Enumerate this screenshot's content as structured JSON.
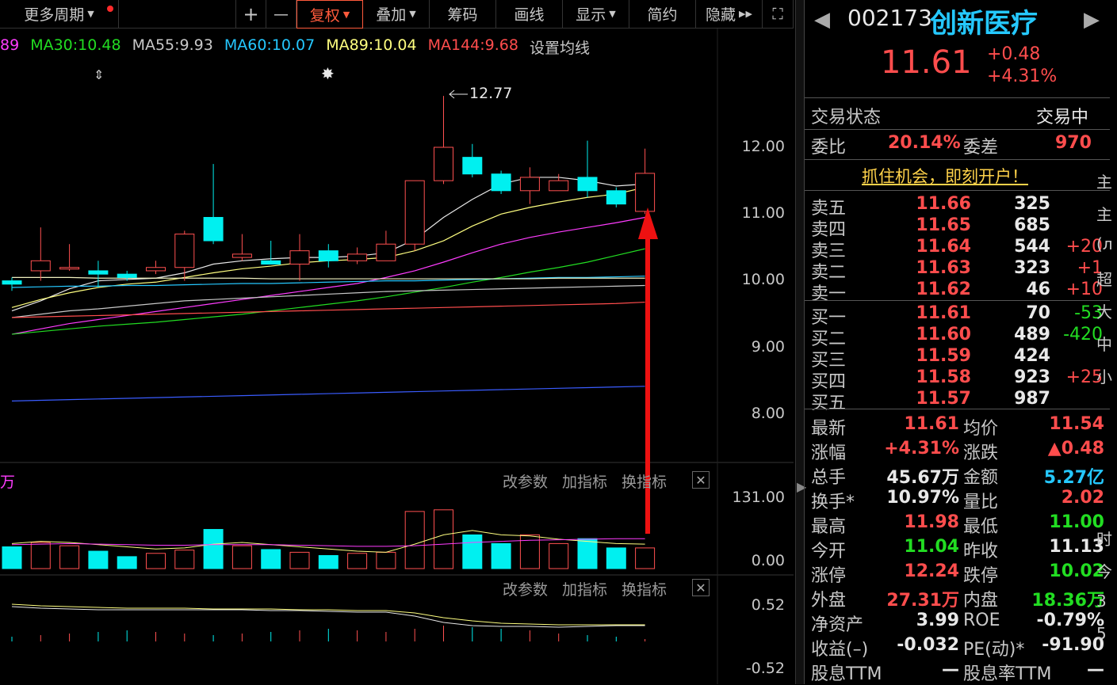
{
  "toolbar": {
    "more_periods": "更多周期",
    "items": [
      "复权",
      "叠加",
      "筹码",
      "画线",
      "显示",
      "简约",
      "隐藏"
    ],
    "plus": "+",
    "minus": "—",
    "fullscreen": "⛶"
  },
  "ma_legend": [
    {
      "label": "89",
      "color": "#ff3cff"
    },
    {
      "label": "MA30:10.48",
      "color": "#22dd22"
    },
    {
      "label": "MA55:9.93",
      "color": "#c8c8c8"
    },
    {
      "label": "MA60:10.07",
      "color": "#25c8ff"
    },
    {
      "label": "MA89:10.04",
      "color": "#ffff80"
    },
    {
      "label": "MA144:9.68",
      "color": "#ff4d4d"
    },
    {
      "label": "设置均线",
      "color": "#c8c8c8"
    }
  ],
  "price_axis": [
    "12.00",
    "11.00",
    "10.00",
    "9.00",
    "8.00"
  ],
  "high_marker": "12.77",
  "volume_axis": [
    "131.00",
    "0.00"
  ],
  "vol_label": "万",
  "indicator_axis": [
    "0.52",
    "-0.52"
  ],
  "panel_buttons": [
    "改参数",
    "加指标",
    "换指标"
  ],
  "chart_data": {
    "type": "candlestick",
    "ylim": [
      7.3,
      13.0
    ],
    "candles": [
      {
        "o": 10.0,
        "c": 9.95,
        "h": 10.05,
        "l": 9.85
      },
      {
        "o": 10.15,
        "c": 10.3,
        "h": 10.8,
        "l": 10.0
      },
      {
        "o": 10.2,
        "c": 10.2,
        "h": 10.55,
        "l": 10.15
      },
      {
        "o": 10.15,
        "c": 10.1,
        "h": 10.3,
        "l": 9.9
      },
      {
        "o": 10.1,
        "c": 10.05,
        "h": 10.15,
        "l": 10.0
      },
      {
        "o": 10.15,
        "c": 10.2,
        "h": 10.3,
        "l": 10.1
      },
      {
        "o": 10.2,
        "c": 10.7,
        "h": 10.75,
        "l": 10.0
      },
      {
        "o": 10.95,
        "c": 10.6,
        "h": 11.75,
        "l": 10.55
      },
      {
        "o": 10.35,
        "c": 10.4,
        "h": 10.7,
        "l": 10.3
      },
      {
        "o": 10.3,
        "c": 10.25,
        "h": 10.6,
        "l": 10.25
      },
      {
        "o": 10.25,
        "c": 10.45,
        "h": 10.7,
        "l": 10.0
      },
      {
        "o": 10.45,
        "c": 10.3,
        "h": 10.55,
        "l": 10.2
      },
      {
        "o": 10.3,
        "c": 10.4,
        "h": 10.5,
        "l": 10.25
      },
      {
        "o": 10.3,
        "c": 10.55,
        "h": 10.75,
        "l": 10.3
      },
      {
        "o": 10.55,
        "c": 11.5,
        "h": 11.5,
        "l": 10.45
      },
      {
        "o": 11.5,
        "c": 12.0,
        "h": 12.77,
        "l": 11.45
      },
      {
        "o": 11.85,
        "c": 11.6,
        "h": 12.05,
        "l": 11.55
      },
      {
        "o": 11.6,
        "c": 11.35,
        "h": 11.65,
        "l": 11.3
      },
      {
        "o": 11.35,
        "c": 11.55,
        "h": 11.7,
        "l": 11.15
      },
      {
        "o": 11.35,
        "c": 11.5,
        "h": 11.6,
        "l": 11.35
      },
      {
        "o": 11.55,
        "c": 11.35,
        "h": 12.1,
        "l": 11.25
      },
      {
        "o": 11.35,
        "c": 11.15,
        "h": 11.4,
        "l": 11.1
      },
      {
        "o": 11.04,
        "c": 11.61,
        "h": 11.98,
        "l": 11.0
      }
    ],
    "volumes": [
      40,
      48,
      42,
      32,
      22,
      28,
      34,
      72,
      42,
      35,
      30,
      24,
      28,
      30,
      105,
      108,
      62,
      46,
      62,
      46,
      55,
      38,
      38
    ],
    "vol_max": 131,
    "ma_lines": [
      {
        "color": "#e8e8e8",
        "values": [
          9.55,
          9.7,
          9.88,
          10.0,
          10.02,
          10.04,
          10.12,
          10.25,
          10.3,
          10.33,
          10.35,
          10.35,
          10.37,
          10.42,
          10.62,
          10.95,
          11.22,
          11.45,
          11.55,
          11.55,
          11.5,
          11.42,
          11.45
        ]
      },
      {
        "color": "#ffff80",
        "values": [
          9.6,
          9.72,
          9.82,
          9.9,
          9.95,
          9.98,
          10.05,
          10.12,
          10.18,
          10.22,
          10.27,
          10.3,
          10.32,
          10.35,
          10.45,
          10.6,
          10.82,
          11.0,
          11.1,
          11.18,
          11.25,
          11.3,
          11.4
        ]
      },
      {
        "color": "#ff3cff",
        "values": [
          9.2,
          9.28,
          9.36,
          9.42,
          9.48,
          9.54,
          9.6,
          9.66,
          9.72,
          9.78,
          9.84,
          9.9,
          9.96,
          10.05,
          10.15,
          10.28,
          10.42,
          10.55,
          10.65,
          10.73,
          10.8,
          10.87,
          10.95
        ]
      },
      {
        "color": "#22dd22",
        "values": [
          9.2,
          9.24,
          9.28,
          9.32,
          9.35,
          9.38,
          9.42,
          9.46,
          9.5,
          9.55,
          9.6,
          9.65,
          9.7,
          9.76,
          9.83,
          9.9,
          9.98,
          10.05,
          10.13,
          10.2,
          10.28,
          10.38,
          10.48
        ]
      },
      {
        "color": "#c8c8c8",
        "values": [
          9.45,
          9.5,
          9.55,
          9.58,
          9.62,
          9.66,
          9.7,
          9.72,
          9.74,
          9.76,
          9.78,
          9.8,
          9.82,
          9.84,
          9.85,
          9.86,
          9.87,
          9.88,
          9.89,
          9.9,
          9.91,
          9.92,
          9.93
        ]
      },
      {
        "color": "#25c8ff",
        "values": [
          9.9,
          9.91,
          9.92,
          9.92,
          9.93,
          9.93,
          9.94,
          9.95,
          9.96,
          9.96,
          9.97,
          9.98,
          9.99,
          10.0,
          10.0,
          10.01,
          10.02,
          10.03,
          10.04,
          10.05,
          10.05,
          10.06,
          10.07
        ]
      },
      {
        "color": "#f0f0c0",
        "values": [
          10.05,
          10.05,
          10.05,
          10.04,
          10.04,
          10.04,
          10.04,
          10.04,
          10.04,
          10.03,
          10.03,
          10.03,
          10.03,
          10.03,
          10.03,
          10.03,
          10.03,
          10.03,
          10.03,
          10.04,
          10.04,
          10.04,
          10.04
        ]
      },
      {
        "color": "#ff4d4d",
        "values": [
          9.45,
          9.46,
          9.47,
          9.48,
          9.49,
          9.5,
          9.51,
          9.52,
          9.53,
          9.54,
          9.55,
          9.56,
          9.57,
          9.58,
          9.59,
          9.6,
          9.61,
          9.62,
          9.63,
          9.64,
          9.65,
          9.66,
          9.68
        ]
      },
      {
        "color": "#3a5cff",
        "values": [
          8.2,
          8.21,
          8.22,
          8.23,
          8.24,
          8.25,
          8.26,
          8.27,
          8.28,
          8.29,
          8.3,
          8.31,
          8.32,
          8.33,
          8.34,
          8.35,
          8.36,
          8.37,
          8.38,
          8.39,
          8.4,
          8.41,
          8.42
        ]
      }
    ]
  },
  "stock": {
    "code": "002173",
    "name": "创新医疗",
    "price": "11.61",
    "change": "+0.48",
    "change_pct": "+4.31%",
    "trade_status_label": "交易状态",
    "trade_status": "交易中",
    "weibi_label": "委比",
    "weibi": "20.14%",
    "weicha_label": "委差",
    "weicha": "970",
    "promo": "抓住机会，即刻开户！"
  },
  "sell_orders": [
    {
      "label": "卖五",
      "price": "11.66",
      "vol": "325",
      "chg": ""
    },
    {
      "label": "卖四",
      "price": "11.65",
      "vol": "685",
      "chg": ""
    },
    {
      "label": "卖三",
      "price": "11.64",
      "vol": "544",
      "chg": "+20"
    },
    {
      "label": "卖二",
      "price": "11.63",
      "vol": "323",
      "chg": "+1"
    },
    {
      "label": "卖一",
      "price": "11.62",
      "vol": "46",
      "chg": "+10"
    }
  ],
  "buy_orders": [
    {
      "label": "买一",
      "price": "11.61",
      "vol": "70",
      "chg": "-53"
    },
    {
      "label": "买二",
      "price": "11.60",
      "vol": "489",
      "chg": "-420"
    },
    {
      "label": "买三",
      "price": "11.59",
      "vol": "424",
      "chg": ""
    },
    {
      "label": "买四",
      "price": "11.58",
      "vol": "923",
      "chg": "+25"
    },
    {
      "label": "买五",
      "price": "11.57",
      "vol": "987",
      "chg": ""
    }
  ],
  "stats": [
    {
      "l1": "最新",
      "v1": "11.61",
      "c1": "#ff4d4d",
      "l2": "均价",
      "v2": "11.54",
      "c2": "#ff4d4d"
    },
    {
      "l1": "涨幅",
      "v1": "+4.31%",
      "c1": "#ff4d4d",
      "l2": "涨跌",
      "v2": "▲0.48",
      "c2": "#ff4d4d"
    },
    {
      "l1": "总手",
      "v1": "45.67万",
      "c1": "#e8e8e8",
      "l2": "金额",
      "v2": "5.27亿",
      "c2": "#25c8ff"
    },
    {
      "l1": "换手*",
      "v1": "10.97%",
      "c1": "#e8e8e8",
      "l2": "量比",
      "v2": "2.02",
      "c2": "#ff4d4d"
    },
    {
      "l1": "最高",
      "v1": "11.98",
      "c1": "#ff4d4d",
      "l2": "最低",
      "v2": "11.00",
      "c2": "#22dd22"
    },
    {
      "l1": "今开",
      "v1": "11.04",
      "c1": "#22dd22",
      "l2": "昨收",
      "v2": "11.13",
      "c2": "#e8e8e8"
    },
    {
      "l1": "涨停",
      "v1": "12.24",
      "c1": "#ff4d4d",
      "l2": "跌停",
      "v2": "10.02",
      "c2": "#22dd22"
    },
    {
      "l1": "外盘",
      "v1": "27.31万",
      "c1": "#ff4d4d",
      "l2": "内盘",
      "v2": "18.36万",
      "c2": "#22dd22"
    },
    {
      "l1": "净资产",
      "v1": "3.99",
      "c1": "#e8e8e8",
      "l2": "ROE",
      "v2": "-0.79%",
      "c2": "#e8e8e8"
    },
    {
      "l1": "收益(–)",
      "v1": "-0.032",
      "c1": "#e8e8e8",
      "l2": "PE(动)*",
      "v2": "-91.90",
      "c2": "#e8e8e8"
    },
    {
      "l1": "股息TTM",
      "v1": "—",
      "c1": "#e8e8e8",
      "l2": "股息率TTM",
      "v2": "—",
      "c2": "#e8e8e8"
    }
  ],
  "edge_chars": [
    "主",
    "主",
    "(л",
    "超",
    "大",
    "中",
    "小",
    "",
    "",
    "",
    "",
    "时",
    "今",
    "3",
    "5"
  ]
}
